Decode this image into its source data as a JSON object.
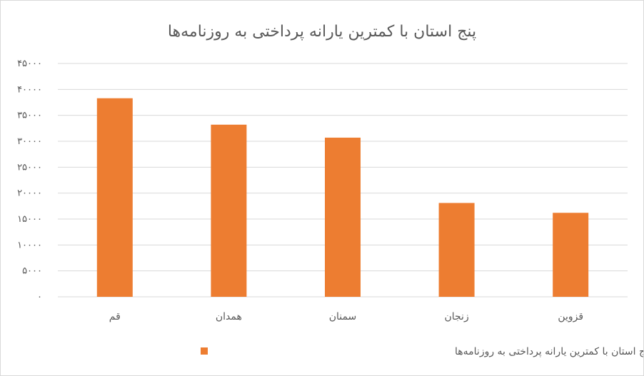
{
  "chart_data": {
    "type": "bar",
    "title": "پنج استان با کمترین یارانه پرداختی به روزنامه‌ها",
    "categories": [
      "قم",
      "همدان",
      "سمنان",
      "زنجان",
      "قزوین"
    ],
    "series": [
      {
        "name": "پنج استان با کمترین یارانه پرداختی به روزنامه‌ها",
        "values": [
          38300,
          33200,
          30700,
          18100,
          16200
        ],
        "color": "#ED7D31"
      }
    ],
    "ylim": [
      0,
      45000
    ],
    "y_ticks": [
      {
        "value": 0,
        "label": "۰"
      },
      {
        "value": 5000,
        "label": "۵۰۰۰"
      },
      {
        "value": 10000,
        "label": "۱۰۰۰۰"
      },
      {
        "value": 15000,
        "label": "۱۵۰۰۰"
      },
      {
        "value": 20000,
        "label": "۲۰۰۰۰"
      },
      {
        "value": 25000,
        "label": "۲۵۰۰۰"
      },
      {
        "value": 30000,
        "label": "۳۰۰۰۰"
      },
      {
        "value": 35000,
        "label": "۳۵۰۰۰"
      },
      {
        "value": 40000,
        "label": "۴۰۰۰۰"
      },
      {
        "value": 45000,
        "label": "۴۵۰۰۰"
      }
    ],
    "grid": true,
    "legend_position": "bottom",
    "gridline_color": "#d9d9d9"
  }
}
